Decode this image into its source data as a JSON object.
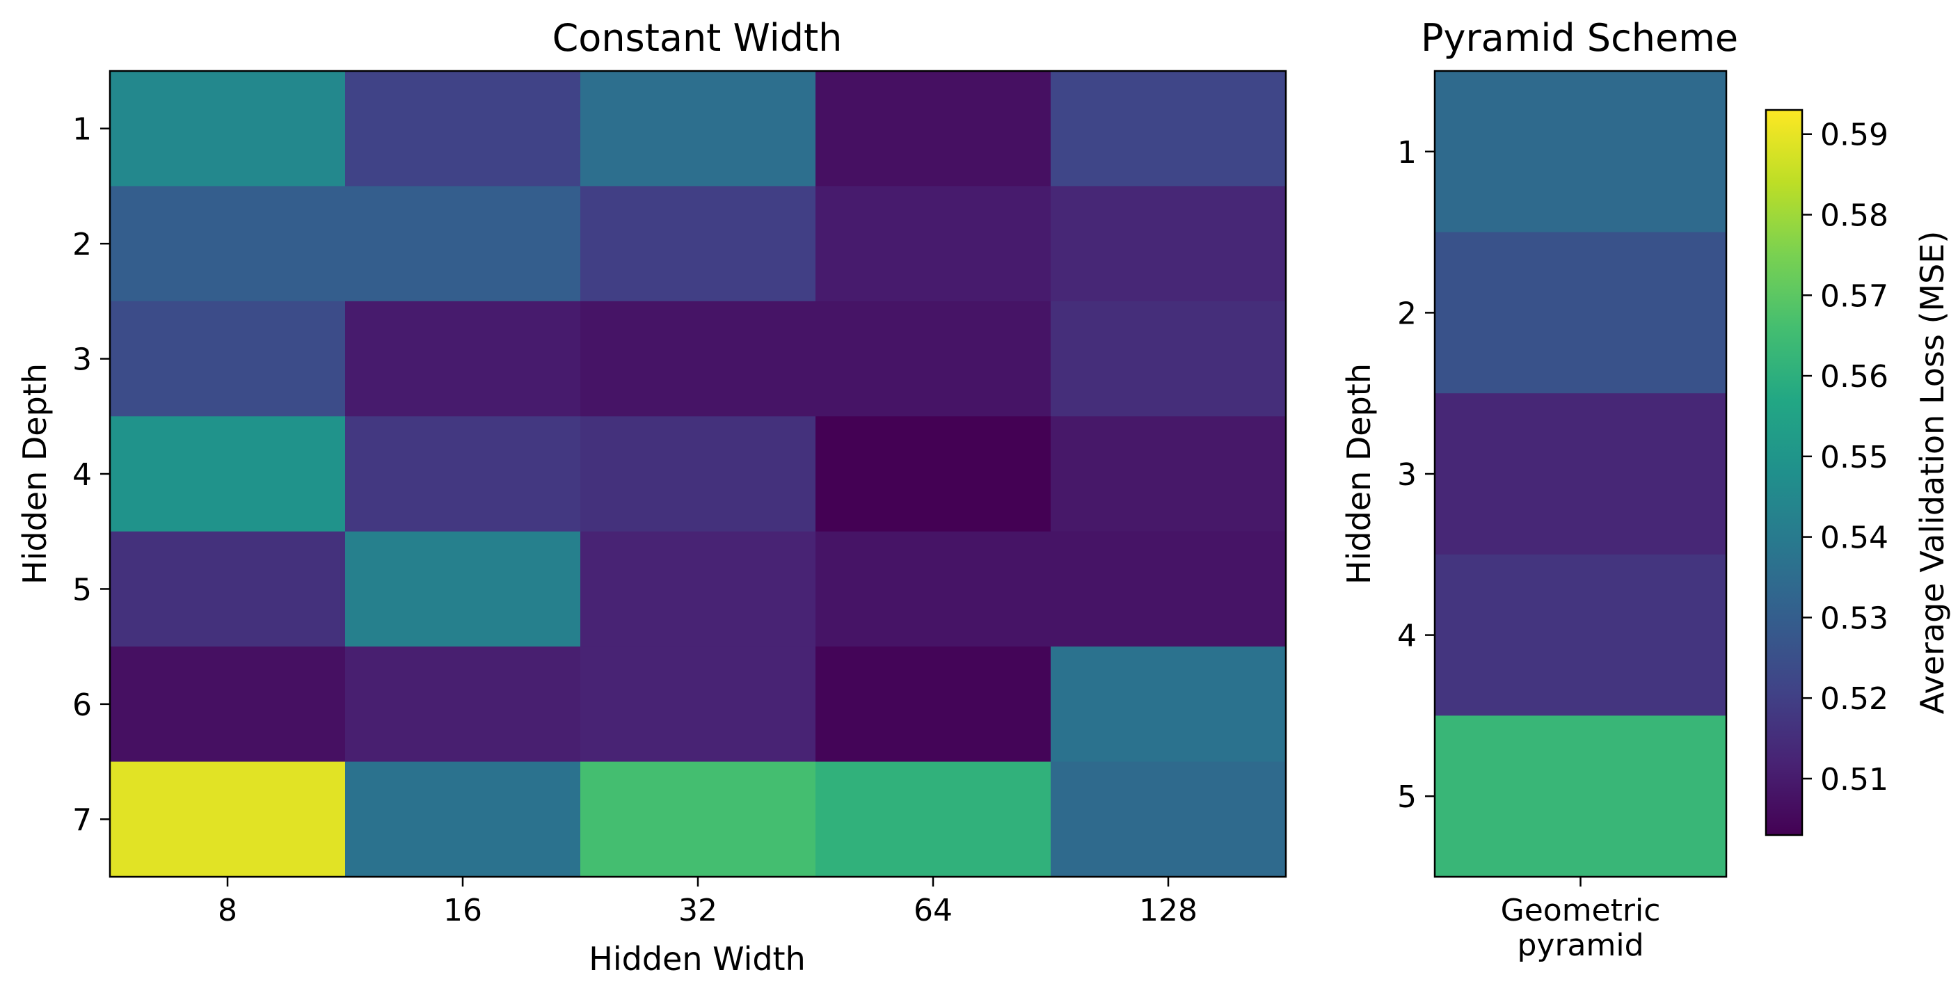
{
  "colormap": "viridis",
  "chart_data": [
    {
      "type": "heatmap",
      "title": "Constant Width",
      "xlabel": "Hidden Width",
      "ylabel": "Hidden Depth",
      "x_categories": [
        "8",
        "16",
        "32",
        "64",
        "128"
      ],
      "y_categories": [
        "1",
        "2",
        "3",
        "4",
        "5",
        "6",
        "7"
      ],
      "values": [
        [
          0.545,
          0.521,
          0.536,
          0.507,
          0.522
        ],
        [
          0.53,
          0.53,
          0.52,
          0.51,
          0.513
        ],
        [
          0.524,
          0.51,
          0.508,
          0.508,
          0.515
        ],
        [
          0.549,
          0.518,
          0.516,
          0.503,
          0.509
        ],
        [
          0.516,
          0.542,
          0.512,
          0.508,
          0.508
        ],
        [
          0.507,
          0.511,
          0.512,
          0.504,
          0.537
        ],
        [
          0.589,
          0.537,
          0.566,
          0.561,
          0.534
        ]
      ]
    },
    {
      "type": "heatmap",
      "title": "Pyramid Scheme",
      "xlabel": "",
      "ylabel": "Hidden Depth",
      "x_categories": [
        "Geometric\npyramid"
      ],
      "y_categories": [
        "1",
        "2",
        "3",
        "4",
        "5"
      ],
      "values": [
        [
          0.534
        ],
        [
          0.526
        ],
        [
          0.513
        ],
        [
          0.517
        ],
        [
          0.563
        ]
      ]
    }
  ],
  "colorbar": {
    "label": "Average Validation Loss (MSE)",
    "range": [
      0.503,
      0.593
    ],
    "ticks": [
      "0.51",
      "0.52",
      "0.53",
      "0.54",
      "0.55",
      "0.56",
      "0.57",
      "0.58",
      "0.59"
    ]
  }
}
